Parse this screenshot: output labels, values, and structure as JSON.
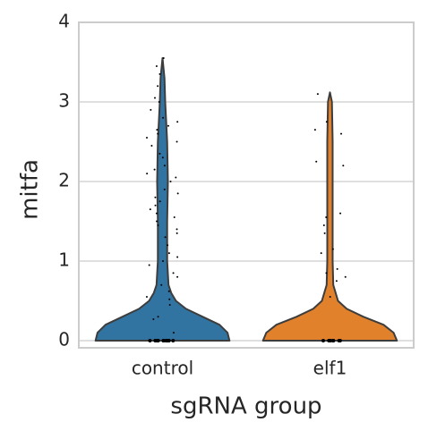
{
  "chart_data": {
    "type": "violin",
    "x_label": "sgRNA group",
    "y_label": "mitfa",
    "categories": [
      "control",
      "elf1"
    ],
    "ylim": [
      -0.09,
      4
    ],
    "yticks": [
      0,
      1,
      2,
      3,
      4
    ],
    "grid": true,
    "edge_color": "#3d3d3d",
    "point_color": "#000000",
    "series": [
      {
        "name": "control",
        "color": "#3274a1",
        "profile_y": [
          0,
          0.1,
          0.2,
          0.3,
          0.4,
          0.5,
          0.6,
          0.7,
          1.0,
          1.5,
          2.0,
          2.5,
          3.0,
          3.3,
          3.55
        ],
        "profile_width": [
          1.0,
          0.97,
          0.85,
          0.6,
          0.35,
          0.2,
          0.13,
          0.09,
          0.07,
          0.07,
          0.08,
          0.07,
          0.04,
          0.03,
          0
        ],
        "points": [
          0,
          0,
          0,
          0,
          0,
          0,
          0,
          0,
          0,
          0,
          0,
          0,
          0.1,
          0.27,
          0.3,
          0.45,
          0.52,
          0.55,
          0.62,
          0.7,
          0.8,
          0.85,
          0.95,
          1.0,
          1.05,
          1.1,
          1.2,
          1.3,
          1.35,
          1.4,
          1.45,
          1.5,
          1.55,
          1.6,
          1.65,
          1.7,
          1.75,
          1.8,
          1.85,
          1.9,
          2.0,
          2.05,
          2.1,
          2.15,
          2.2,
          2.3,
          2.35,
          2.45,
          2.5,
          2.55,
          2.6,
          2.65,
          2.7,
          2.75,
          2.8,
          2.9,
          3.0,
          3.05,
          3.2,
          3.35,
          3.45,
          3.55
        ]
      },
      {
        "name": "elf1",
        "color": "#e1812c",
        "profile_y": [
          0,
          0.1,
          0.2,
          0.3,
          0.4,
          0.5,
          0.7,
          1.0,
          2.0,
          2.5,
          3.0,
          3.12
        ],
        "profile_width": [
          1.0,
          0.95,
          0.8,
          0.5,
          0.25,
          0.12,
          0.05,
          0.04,
          0.04,
          0.04,
          0.03,
          0
        ],
        "points": [
          0,
          0,
          0,
          0,
          0,
          0,
          0,
          0,
          0.55,
          0.75,
          0.8,
          0.85,
          0.9,
          1.1,
          1.15,
          1.35,
          1.45,
          1.55,
          1.6,
          2.2,
          2.25,
          2.6,
          2.65,
          2.75,
          3.1
        ]
      }
    ]
  }
}
